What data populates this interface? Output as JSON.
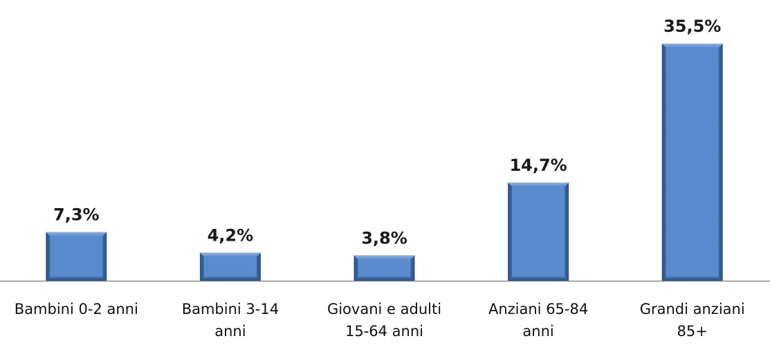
{
  "chart_data": {
    "type": "bar",
    "categories": [
      [
        "Bambini 0-2 anni"
      ],
      [
        "Bambini 3-14",
        "anni"
      ],
      [
        "Giovani e adulti",
        "15-64 anni"
      ],
      [
        "Anziani 65-84",
        "anni"
      ],
      [
        "Grandi anziani",
        "85+"
      ]
    ],
    "values": [
      7.3,
      4.2,
      3.8,
      14.7,
      35.5
    ],
    "value_labels": [
      "7,3%",
      "4,2%",
      "3,8%",
      "14,7%",
      "35,5%"
    ],
    "title": "",
    "xlabel": "",
    "ylabel": "",
    "ylim": [
      0,
      35.5
    ],
    "grid": false,
    "legend": "none",
    "bar_color": "#4f81bd"
  }
}
